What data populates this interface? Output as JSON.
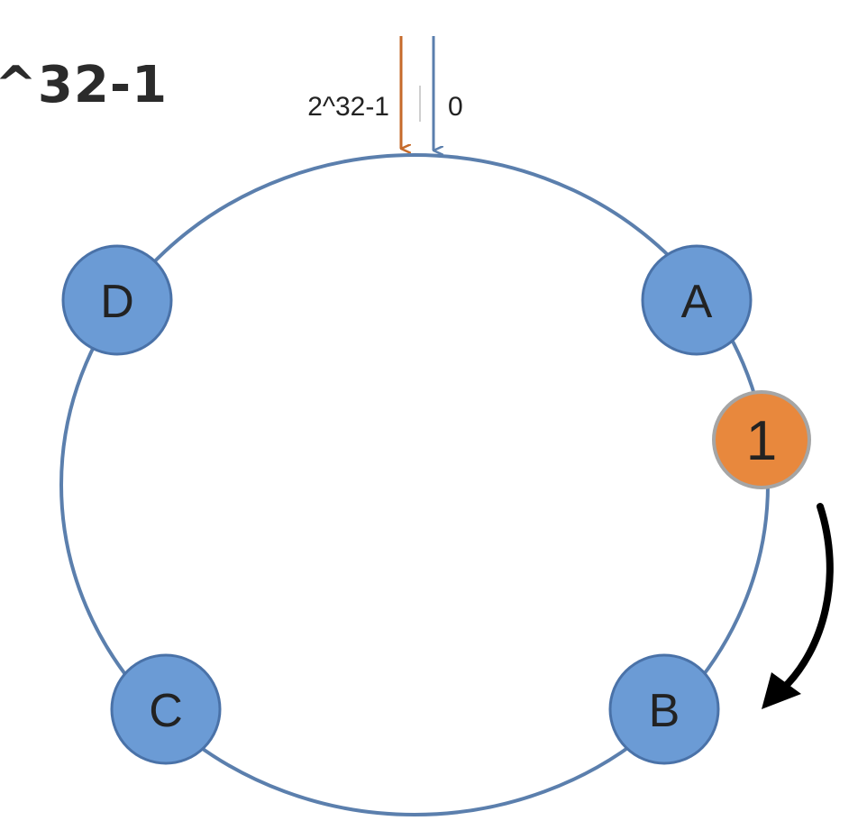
{
  "heading": "^32-1",
  "ring": {
    "max_label": "2^32-1",
    "zero_label": "0"
  },
  "nodes": [
    {
      "label": "D"
    },
    {
      "label": "A"
    },
    {
      "label": "C"
    },
    {
      "label": "B"
    }
  ],
  "key": {
    "label": "1"
  },
  "colors": {
    "ring": "#5b7fad",
    "node_fill": "#6b9bd5",
    "node_stroke": "#4a72a8",
    "key_fill": "#e8883d",
    "key_stroke": "#a5a5a5",
    "max_arrow": "#c66a2a",
    "zero_arrow": "#5b7fad",
    "direction_arrow": "#000000",
    "label_text": "#222222"
  }
}
